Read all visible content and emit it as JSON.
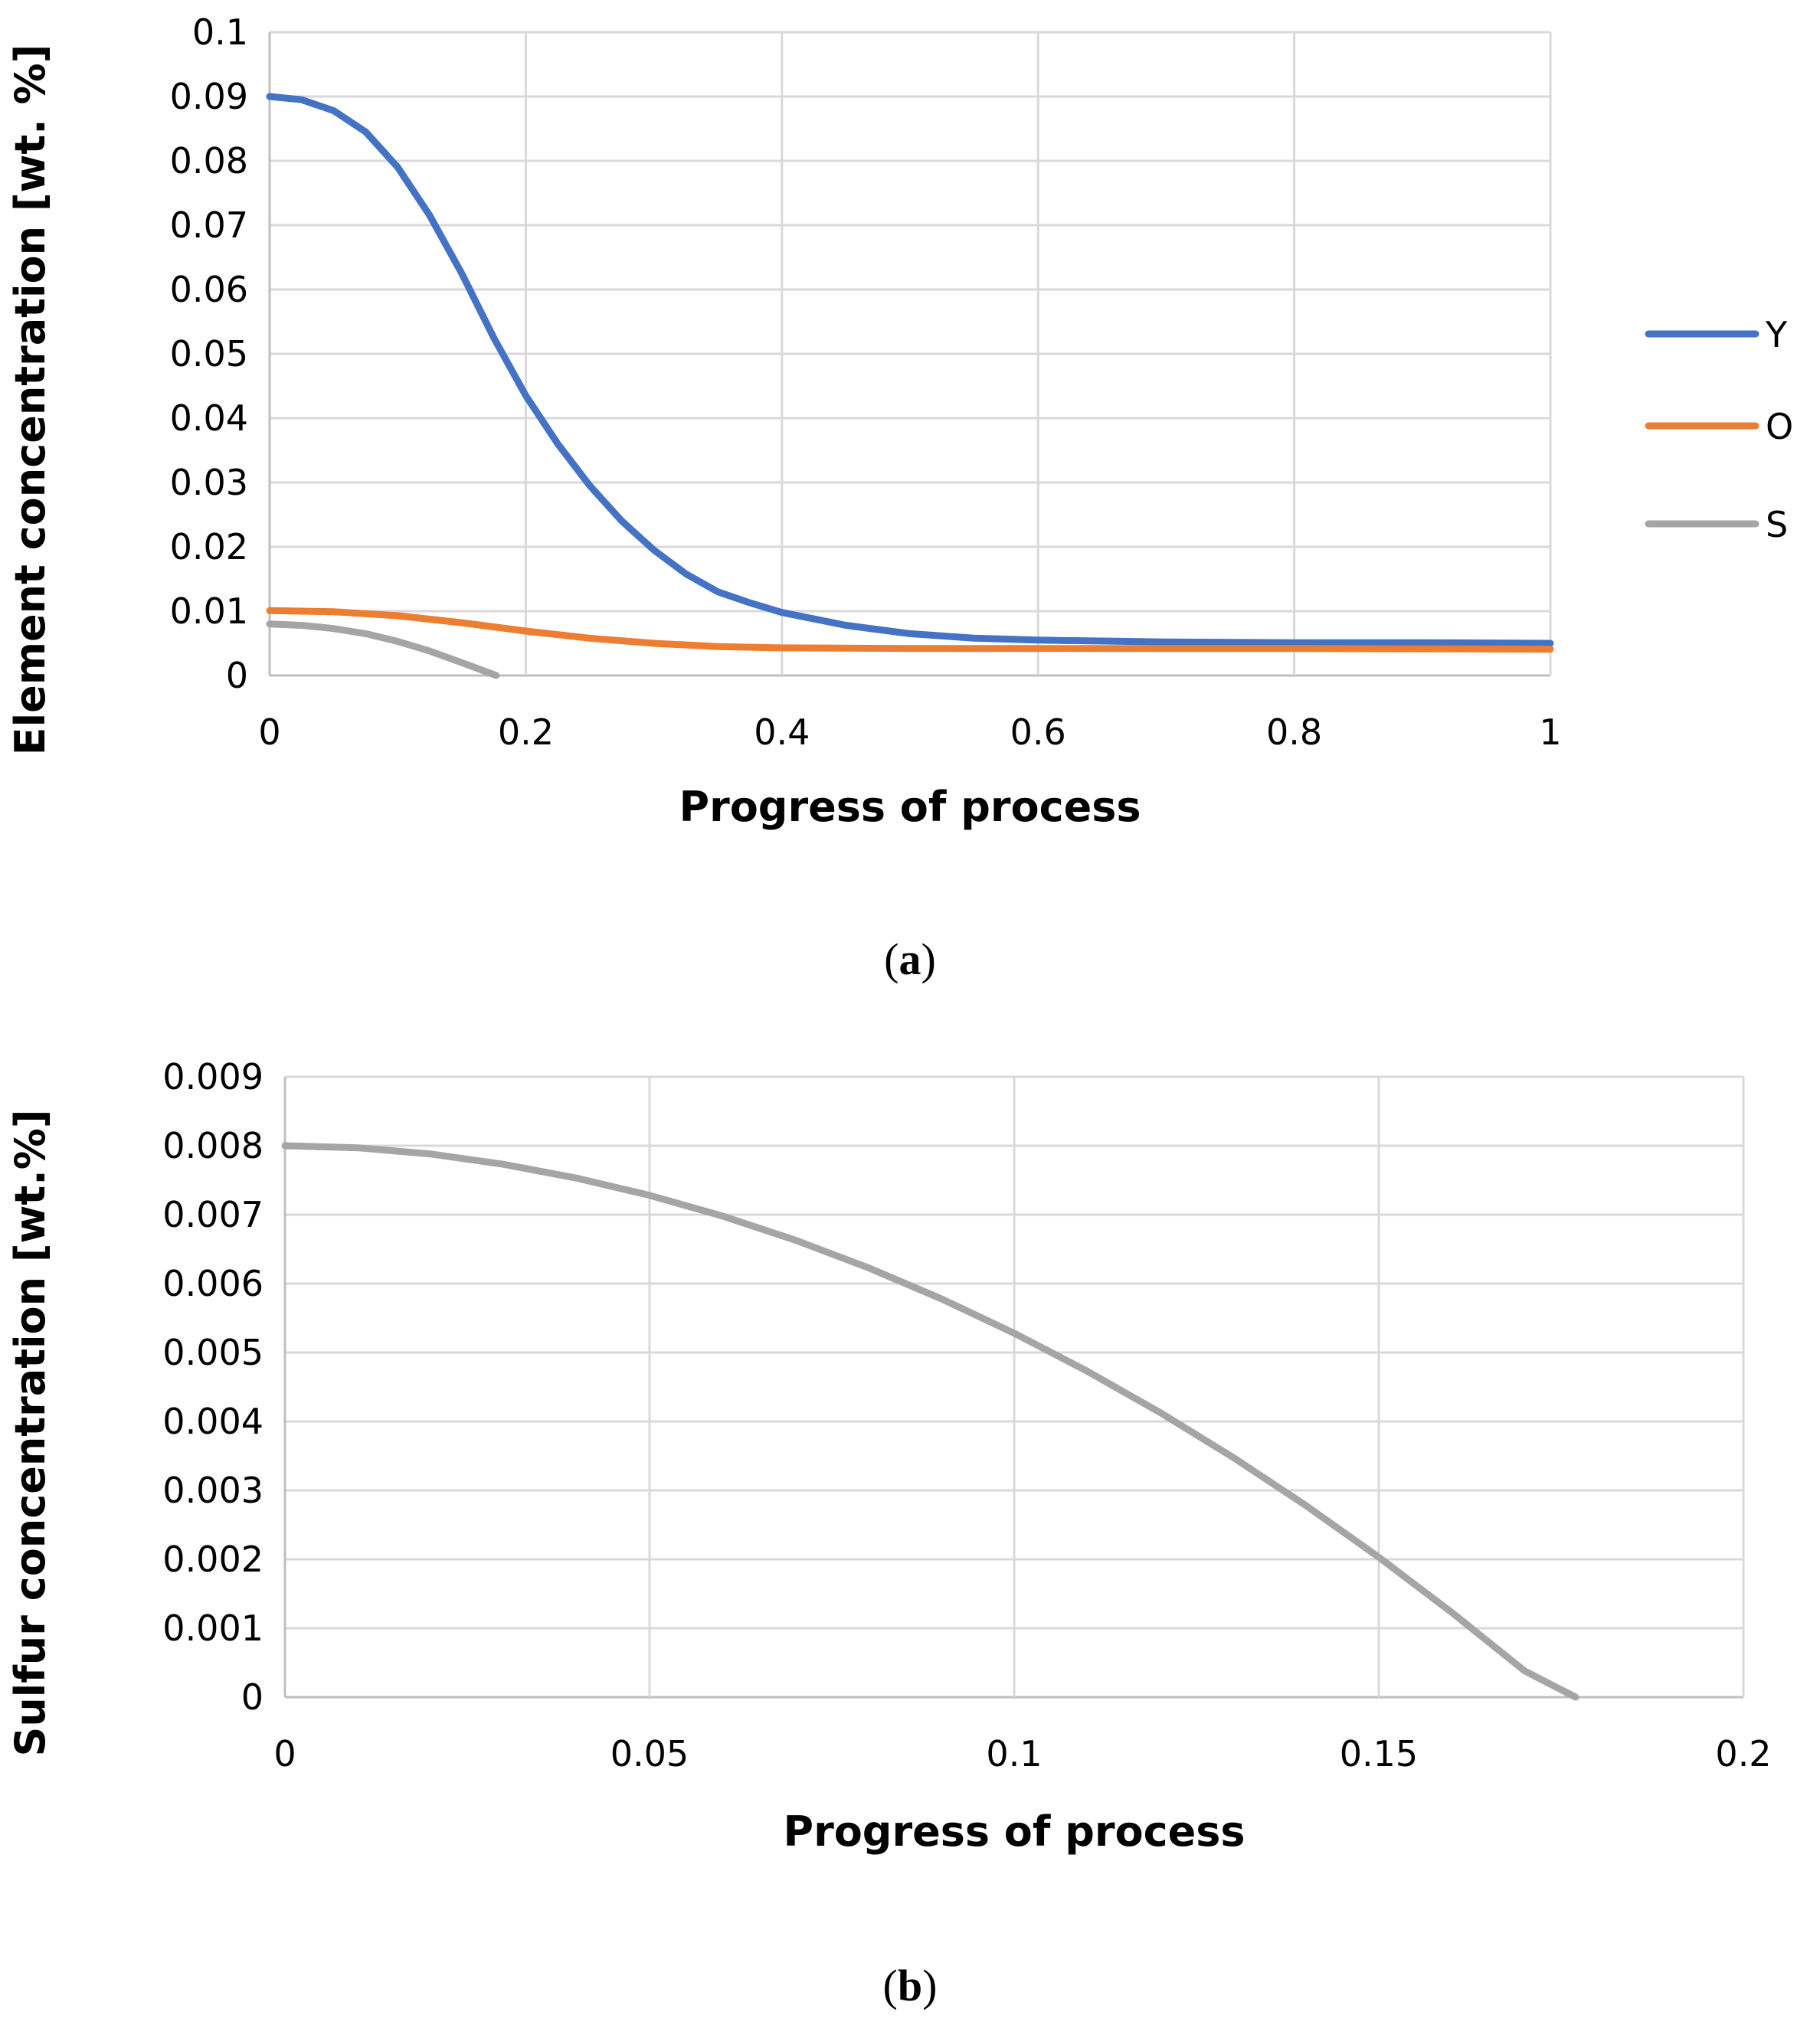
{
  "chart_data": [
    {
      "panel_label": "a",
      "type": "line",
      "title": "",
      "xlabel": "Progress of process",
      "ylabel": "Element concentration  [wt. %]",
      "xlim": [
        0,
        1
      ],
      "ylim": [
        0,
        0.1
      ],
      "x_ticks": [
        0,
        0.2,
        0.4,
        0.6,
        0.8,
        1
      ],
      "x_tick_labels": [
        "0",
        "0.2",
        "0.4",
        "0.6",
        "0.8",
        "1"
      ],
      "y_ticks": [
        0,
        0.01,
        0.02,
        0.03,
        0.04,
        0.05,
        0.06,
        0.07,
        0.08,
        0.09,
        0.1
      ],
      "y_tick_labels": [
        "0",
        "0.01",
        "0.02",
        "0.03",
        "0.04",
        "0.05",
        "0.06",
        "0.07",
        "0.08",
        "0.09",
        "0.1"
      ],
      "grid": true,
      "legend_position": "right",
      "series": [
        {
          "name": "Y",
          "color": "#4472c4",
          "x": [
            0,
            0.025,
            0.05,
            0.075,
            0.1,
            0.125,
            0.15,
            0.175,
            0.2,
            0.225,
            0.25,
            0.275,
            0.3,
            0.325,
            0.35,
            0.375,
            0.4,
            0.45,
            0.5,
            0.55,
            0.6,
            0.7,
            0.8,
            0.9,
            1.0
          ],
          "y": [
            0.09,
            0.0895,
            0.0878,
            0.0845,
            0.079,
            0.0715,
            0.0625,
            0.0525,
            0.0435,
            0.036,
            0.0295,
            0.024,
            0.0195,
            0.0158,
            0.013,
            0.0113,
            0.0098,
            0.0078,
            0.0065,
            0.0058,
            0.0055,
            0.0052,
            0.0051,
            0.0051,
            0.005
          ]
        },
        {
          "name": "O",
          "color": "#ed7d31",
          "x": [
            0,
            0.05,
            0.1,
            0.15,
            0.2,
            0.25,
            0.3,
            0.35,
            0.4,
            0.5,
            0.6,
            0.8,
            1.0
          ],
          "y": [
            0.0101,
            0.0099,
            0.0093,
            0.0082,
            0.0069,
            0.0058,
            0.005,
            0.0045,
            0.0043,
            0.0042,
            0.0042,
            0.0042,
            0.0041
          ]
        },
        {
          "name": "S",
          "color": "#a5a5a5",
          "x": [
            0,
            0.025,
            0.05,
            0.075,
            0.1,
            0.125,
            0.15,
            0.177
          ],
          "y": [
            0.008,
            0.0078,
            0.0073,
            0.0065,
            0.0053,
            0.0038,
            0.002,
            0.0
          ]
        }
      ]
    },
    {
      "panel_label": "b",
      "type": "line",
      "title": "",
      "xlabel": "Progress of process",
      "ylabel": "Sulfur concentration  [wt.%]",
      "xlim": [
        0,
        0.2
      ],
      "ylim": [
        0,
        0.009
      ],
      "x_ticks": [
        0,
        0.05,
        0.1,
        0.15,
        0.2
      ],
      "x_tick_labels": [
        "0",
        "0.05",
        "0.1",
        "0.15",
        "0.2"
      ],
      "y_ticks": [
        0,
        0.001,
        0.002,
        0.003,
        0.004,
        0.005,
        0.006,
        0.007,
        0.008,
        0.009
      ],
      "y_tick_labels": [
        "0",
        "0.001",
        "0.002",
        "0.003",
        "0.004",
        "0.005",
        "0.006",
        "0.007",
        "0.008",
        "0.009"
      ],
      "grid": true,
      "legend_position": "none",
      "series": [
        {
          "name": "S",
          "color": "#a5a5a5",
          "x": [
            0,
            0.01,
            0.02,
            0.03,
            0.04,
            0.05,
            0.06,
            0.07,
            0.08,
            0.09,
            0.1,
            0.11,
            0.12,
            0.13,
            0.14,
            0.15,
            0.16,
            0.17,
            0.177
          ],
          "y": [
            0.008,
            0.00797,
            0.00788,
            0.00773,
            0.00753,
            0.00728,
            0.00698,
            0.00663,
            0.00623,
            0.00578,
            0.00528,
            0.00473,
            0.00413,
            0.00348,
            0.00278,
            0.00203,
            0.00123,
            0.00038,
            0.0
          ]
        }
      ]
    }
  ]
}
